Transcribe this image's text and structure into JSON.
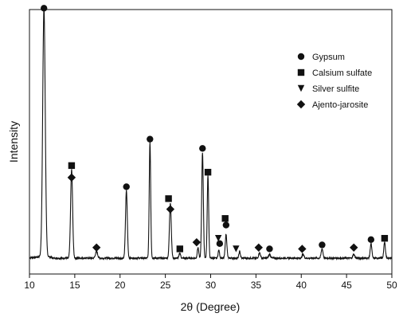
{
  "chart_data": {
    "type": "line",
    "title": "",
    "xlabel": "2θ (Degree)",
    "ylabel": "Intensity",
    "xlim": [
      10,
      50
    ],
    "ylim": [
      0,
      1000
    ],
    "x_ticks": [
      10,
      15,
      20,
      25,
      30,
      35,
      40,
      45,
      50
    ],
    "grid": false,
    "legend_position": "top-right",
    "baseline": 60,
    "line_color": "#111111",
    "peaks": [
      {
        "x": 11.6,
        "h": 940,
        "w": 0.14
      },
      {
        "x": 14.65,
        "h": 335,
        "w": 0.11
      },
      {
        "x": 17.4,
        "h": 25,
        "w": 0.12
      },
      {
        "x": 20.7,
        "h": 255,
        "w": 0.1
      },
      {
        "x": 23.3,
        "h": 440,
        "w": 0.08
      },
      {
        "x": 25.55,
        "h": 210,
        "w": 0.1
      },
      {
        "x": 26.6,
        "h": 20,
        "w": 0.08
      },
      {
        "x": 28.6,
        "h": 40,
        "w": 0.08
      },
      {
        "x": 29.1,
        "h": 400,
        "w": 0.09
      },
      {
        "x": 29.7,
        "h": 315,
        "w": 0.08
      },
      {
        "x": 30.9,
        "h": 30,
        "w": 0.08
      },
      {
        "x": 31.7,
        "h": 90,
        "w": 0.09
      },
      {
        "x": 33.2,
        "h": 25,
        "w": 0.08
      },
      {
        "x": 35.4,
        "h": 20,
        "w": 0.1
      },
      {
        "x": 36.5,
        "h": 15,
        "w": 0.1
      },
      {
        "x": 40.2,
        "h": 15,
        "w": 0.1
      },
      {
        "x": 42.3,
        "h": 35,
        "w": 0.1
      },
      {
        "x": 45.8,
        "h": 15,
        "w": 0.1
      },
      {
        "x": 47.7,
        "h": 55,
        "w": 0.09
      },
      {
        "x": 49.2,
        "h": 60,
        "w": 0.09
      }
    ],
    "series": [
      {
        "name": "Gypsum",
        "marker": "circle",
        "points": [
          [
            11.6,
            1005
          ],
          [
            20.7,
            330
          ],
          [
            23.3,
            510
          ],
          [
            29.1,
            475
          ],
          [
            31.7,
            185
          ],
          [
            31.0,
            115
          ],
          [
            36.5,
            95
          ],
          [
            42.3,
            110
          ],
          [
            47.7,
            130
          ]
        ]
      },
      {
        "name": "Calsium sulfate",
        "marker": "square",
        "points": [
          [
            14.65,
            410
          ],
          [
            25.35,
            285
          ],
          [
            26.6,
            95
          ],
          [
            29.7,
            385
          ],
          [
            31.6,
            210
          ],
          [
            49.2,
            135
          ]
        ]
      },
      {
        "name": "Silver sulfite",
        "marker": "triangle",
        "points": [
          [
            30.85,
            135
          ],
          [
            32.8,
            95
          ]
        ]
      },
      {
        "name": "Ajento-jarosite",
        "marker": "diamond",
        "points": [
          [
            14.65,
            365
          ],
          [
            17.4,
            100
          ],
          [
            25.55,
            245
          ],
          [
            28.45,
            120
          ],
          [
            35.3,
            100
          ],
          [
            40.1,
            95
          ],
          [
            45.8,
            100
          ]
        ]
      }
    ]
  }
}
